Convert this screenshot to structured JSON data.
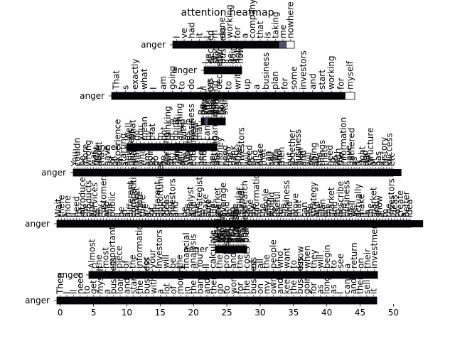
{
  "chart_data": {
    "type": "heatmap",
    "title": "attention heatmap",
    "colormap": "bone",
    "row_label": "anger",
    "panels": [
      {
        "name": "panel-1",
        "tokens": [
          "I",
          "ve",
          "had",
          "it",
          "I",
          "m",
          "done",
          "working",
          "for",
          "a",
          "company",
          "that",
          "is",
          "taking",
          "me",
          "nowhere"
        ],
        "weights": [
          0.02,
          0.02,
          0.03,
          0.02,
          0.02,
          0.02,
          0.03,
          0.02,
          0.02,
          0.02,
          0.02,
          0.03,
          0.02,
          0.03,
          0.35,
          1.0
        ],
        "x_ticks": []
      },
      {
        "name": "panel-2",
        "tokens": [
          "I",
          "ve",
          "decided",
          "to",
          "start",
          "my",
          "own",
          "business",
          "I",
          "ll",
          "be",
          "doing",
          "it",
          "right",
          "now"
        ],
        "weights": [
          0.02,
          0.02,
          0.02,
          0.02,
          0.02,
          0.02,
          0.02,
          0.02,
          0.02,
          0.02,
          0.02,
          0.02,
          0.02,
          0.02,
          0.02
        ],
        "x_ticks": []
      },
      {
        "name": "panel-3",
        "tokens": [
          "That",
          "s",
          "exactly",
          "what",
          "I",
          "am",
          "going",
          "to",
          "do",
          "I",
          "ve",
          "decided",
          "to",
          "write",
          "up",
          "a",
          "business",
          "plan",
          "for",
          "some",
          "investors",
          "and",
          "start",
          "working",
          "for",
          "myself"
        ],
        "weights": [
          0.02,
          0.02,
          0.02,
          0.02,
          0.02,
          0.02,
          0.02,
          0.02,
          0.02,
          0.02,
          0.02,
          0.02,
          0.02,
          0.02,
          0.02,
          0.02,
          0.02,
          0.02,
          0.02,
          0.02,
          0.02,
          0.02,
          0.02,
          0.02,
          0.02,
          1.0
        ],
        "x_ticks": []
      },
      {
        "name": "panel-4",
        "tokens": [
          "Be",
          "careful",
          "What",
          "kind",
          "of",
          "business",
          "are",
          "you",
          "thinking",
          "about",
          "I",
          "m",
          "going",
          "to",
          "start"
        ],
        "weights": [
          0.02,
          0.02,
          0.25,
          0.35,
          0.03,
          0.02,
          0.02,
          0.02,
          0.02,
          0.02,
          0.02,
          0.02,
          0.02,
          0.02,
          0.03
        ],
        "x_ticks": []
      },
      {
        "name": "panel-5",
        "tokens": [
          "Well",
          "what",
          "do",
          "you",
          "mean",
          "by",
          "that",
          "I",
          "m",
          "not",
          "thinking",
          "of",
          "doing",
          "anything",
          "with",
          "a",
          "business",
          "plan",
          "that",
          "I",
          "can",
          "t",
          "handle"
        ],
        "weights": [
          0.02,
          0.02,
          0.02,
          0.02,
          0.02,
          0.02,
          0.02,
          0.02,
          0.02,
          0.02,
          0.02,
          0.02,
          0.02,
          0.02,
          0.02,
          0.02,
          0.02,
          0.02,
          0.02,
          0.02,
          0.02,
          0.02,
          0.02
        ],
        "x_ticks": []
      },
      {
        "name": "panel-6",
        "tokens": [
          "You",
          "couldn",
          "t",
          "be",
          "more",
          "wrong",
          "I",
          "was",
          "right",
          "about",
          "that",
          "I",
          "have",
          "a",
          "lot",
          "of",
          "experience",
          "in",
          "starting",
          "a",
          "new",
          "business",
          "and",
          "that",
          "is",
          "what",
          "I",
          "am",
          "going",
          "to",
          "do",
          "I",
          "ll",
          "be",
          "working",
          "out",
          "of",
          "my",
          "home",
          "with",
          "all",
          "the",
          "supplies",
          "and",
          "equipment",
          "I",
          "ll",
          "need",
          "and",
          "I",
          "ll",
          "be",
          "getting",
          "the",
          "money",
          "I",
          "need",
          "from",
          "the",
          "bank",
          "and",
          "other",
          "investors",
          "I",
          "will",
          "need",
          "to",
          "find",
          "a",
          "place",
          "that",
          "I",
          "can",
          "call",
          "my",
          "own",
          "and",
          "then",
          "I",
          "ll",
          "put",
          "together",
          "a",
          "business",
          "plan",
          "and",
          "I",
          "will",
          "be",
          "doing",
          "all",
          "the",
          "things",
          "that",
          "I",
          "need",
          "to",
          "do",
          "with",
          "the",
          "information",
          "I",
          "have",
          "gathered",
          "as",
          "it",
          "is",
          "right",
          "and",
          "the",
          "structure",
          "of",
          "it",
          "has",
          "a",
          "history",
          "of",
          "success",
          "etc"
        ],
        "weights": [
          0.02,
          0.02,
          0.02,
          0.02,
          0.02,
          0.02,
          0.02,
          0.02,
          0.02,
          0.02,
          0.02,
          0.02,
          0.02,
          0.02,
          0.02,
          0.02,
          0.02,
          0.02,
          0.02,
          0.02,
          0.02,
          0.02,
          0.02,
          0.02,
          0.02,
          0.02,
          0.02,
          0.02,
          0.02,
          0.02,
          0.02,
          0.02,
          0.02,
          0.02,
          0.02,
          0.02,
          0.02,
          0.02,
          0.02,
          0.02,
          0.02,
          0.02,
          0.02,
          0.02,
          0.02,
          0.02,
          0.02,
          0.02,
          0.02,
          0.02,
          0.02,
          0.02,
          0.02,
          0.02,
          0.02,
          0.02,
          0.02,
          0.02,
          0.02,
          0.02,
          0.02,
          0.02,
          0.02,
          0.02,
          0.02,
          0.02,
          0.02,
          0.02,
          0.02,
          0.02,
          0.02,
          0.02,
          0.02,
          0.02,
          0.02,
          0.02,
          0.02,
          0.02,
          0.02,
          0.02,
          0.02,
          0.02,
          0.02,
          0.02,
          0.02,
          0.02,
          0.02,
          0.02,
          0.02,
          0.02,
          0.02,
          0.02,
          0.02,
          0.02,
          0.02,
          0.02,
          0.02,
          0.02,
          0.02,
          0.02,
          0.02,
          0.02,
          0.02,
          0.02,
          0.02,
          0.02,
          0.02,
          0.02,
          0.02,
          0.02,
          0.02,
          0.02,
          0.02,
          0.02,
          0.02,
          0.02,
          0.02,
          0.02,
          0.02,
          0.02,
          0.02,
          0.02
        ],
        "x_ticks": []
      },
      {
        "name": "panel-7",
        "tokens": [
          "Wait",
          "there",
          "s",
          "more",
          "I",
          "ll",
          "need",
          "to",
          "introduce",
          "the",
          "products",
          "and",
          "services",
          "to",
          "my",
          "customers",
          "and",
          "the",
          "public",
          "I",
          "ll",
          "be",
          "in",
          "a",
          "different",
          "competitive",
          "market",
          "where",
          "there",
          "are",
          "a",
          "lot",
          "of",
          "different",
          "opportunities",
          "and",
          "ideas",
          "and",
          "investors",
          "and",
          "I",
          "ll",
          "be",
          "the",
          "analyst",
          "and",
          "the",
          "strategist",
          "to",
          "make",
          "sure",
          "that",
          "the",
          "market",
          "is",
          "average",
          "and",
          "to",
          "do",
          "the",
          "regular",
          "market",
          "research",
          "to",
          "give",
          "the",
          "information",
          "to",
          "the",
          "people",
          "who",
          "would",
          "be",
          "useful",
          "for",
          "the",
          "business",
          "and",
          "to",
          "prove",
          "that",
          "I",
          "can",
          "do",
          "the",
          "strategy",
          "and",
          "the",
          "plan",
          "on",
          "the",
          "market",
          "and",
          "to",
          "describe",
          "the",
          "business",
          "as",
          "well",
          "as",
          "actually",
          "make",
          "it",
          "in",
          "the",
          "market",
          "and",
          "show",
          "it",
          "to",
          "the",
          "investors",
          "ideas",
          "to",
          "create",
          "a",
          "better",
          "idea"
        ],
        "weights": [
          0.02,
          0.02,
          0.02,
          0.02,
          0.02,
          0.02,
          0.02,
          0.02,
          0.02,
          0.02,
          0.02,
          0.02,
          0.02,
          0.02,
          0.02,
          0.02,
          0.02,
          0.02,
          0.02,
          0.02,
          0.02,
          0.02,
          0.02,
          0.02,
          0.02,
          0.02,
          0.02,
          0.02,
          0.02,
          0.02,
          0.02,
          0.02,
          0.02,
          0.02,
          0.02,
          0.02,
          0.02,
          0.02,
          0.02,
          0.02,
          0.02,
          0.02,
          0.02,
          0.02,
          0.02,
          0.02,
          0.02,
          0.02,
          0.02,
          0.02,
          0.02,
          0.02,
          0.02,
          0.02,
          0.02,
          0.02,
          0.02,
          0.02,
          0.02,
          0.02,
          0.02,
          0.02,
          0.02,
          0.02,
          0.02,
          0.02,
          0.02,
          0.02,
          0.02,
          0.02,
          0.02,
          0.02,
          0.02,
          0.02,
          0.02,
          0.02,
          0.02,
          0.02,
          0.02,
          0.02,
          0.02,
          0.02,
          0.02,
          0.02,
          0.02,
          0.02,
          0.02,
          0.02,
          0.02,
          0.02,
          0.02,
          0.02,
          0.02,
          0.02,
          0.02,
          0.02,
          0.02,
          0.02,
          0.02,
          0.02,
          0.02,
          0.02,
          0.02,
          0.02,
          0.02,
          0.02,
          0.02,
          0.02,
          0.02,
          0.02,
          0.02,
          0.02,
          0.02,
          0.02,
          0.02,
          0.02,
          0.02,
          0.02,
          0.02,
          0.02,
          0.02,
          0.02
        ],
        "x_ticks": []
      },
      {
        "name": "panel-8",
        "tokens": [
          "What",
          "we",
          "calculate",
          "as",
          "the",
          "capital",
          "is",
          "not",
          "the",
          "same",
          "as",
          "the",
          "income",
          "from",
          "a",
          "financial",
          "analysis",
          "and",
          "the",
          "costs",
          "of",
          "a",
          "new",
          "business",
          "plan"
        ],
        "weights": [
          0.02,
          0.02,
          0.02,
          0.02,
          0.02,
          0.02,
          0.02,
          0.02,
          0.02,
          0.02,
          0.02,
          0.02,
          0.02,
          0.02,
          0.02,
          0.02,
          0.02,
          0.02,
          0.02,
          0.02,
          0.02,
          0.02,
          0.02,
          0.02,
          0.02
        ],
        "x_ticks": []
      },
      {
        "name": "panel-9",
        "tokens": [
          "Almost",
          "the",
          "most",
          "important",
          "piece",
          "of",
          "the",
          "information",
          "for",
          "your",
          "investors",
          "will",
          "be",
          "the",
          "financial",
          "analysis",
          "You",
          "ll",
          "calculate",
          "the",
          "profits",
          "and",
          "the",
          "costs",
          "of",
          "all",
          "the",
          "people",
          "who",
          "want",
          "to",
          "know",
          "when",
          "they",
          "will",
          "begin",
          "to",
          "see",
          "a",
          "return",
          "on",
          "their",
          "investment"
        ],
        "weights": [
          0.02,
          0.02,
          0.02,
          0.02,
          0.02,
          0.02,
          0.02,
          0.02,
          0.02,
          0.02,
          0.02,
          0.02,
          0.02,
          0.02,
          0.02,
          0.02,
          0.02,
          0.02,
          0.02,
          0.02,
          0.02,
          0.02,
          0.02,
          0.02,
          0.02,
          0.02,
          0.02,
          0.02,
          0.02,
          0.02,
          0.02,
          0.02,
          0.02,
          0.02,
          0.02,
          0.02,
          0.02,
          0.02,
          0.02,
          0.02,
          0.02,
          0.02,
          0.02
        ],
        "x_ticks": []
      },
      {
        "name": "panel-10",
        "tokens": [
          "Then",
          "I",
          "ll",
          "need",
          "to",
          "get",
          "myself",
          "a",
          "business",
          "loan",
          "and",
          "start",
          "the",
          "business",
          "with",
          "a",
          "lot",
          "of",
          "money",
          "in",
          "the",
          "bank",
          "and",
          "then",
          "go",
          "to",
          "work",
          "for",
          "the",
          "business",
          "on",
          "my",
          "own",
          "and",
          "keep",
          "the",
          "business",
          "going",
          "for",
          "as",
          "long",
          "as",
          "I",
          "can",
          "and",
          "then",
          "sell",
          "it"
        ],
        "weights": [
          0.02,
          0.02,
          0.02,
          0.02,
          0.02,
          0.02,
          0.02,
          0.02,
          0.02,
          0.02,
          0.02,
          0.02,
          0.02,
          0.02,
          0.02,
          0.02,
          0.02,
          0.02,
          0.02,
          0.02,
          0.02,
          0.02,
          0.02,
          0.02,
          0.02,
          0.02,
          0.02,
          0.02,
          0.02,
          0.02,
          0.02,
          0.02,
          0.02,
          0.02,
          0.02,
          0.02,
          0.02,
          0.02,
          0.02,
          0.02,
          0.02,
          0.02,
          0.02,
          0.02,
          0.02,
          0.02,
          0.02,
          0.02
        ],
        "x_ticks": [
          "0",
          "5",
          "10",
          "15",
          "20",
          "25",
          "30",
          "35",
          "40",
          "45",
          "50"
        ]
      }
    ]
  },
  "colors": {
    "background": "#ffffff",
    "text": "#000000",
    "low": "#000000",
    "high": "#ffffff"
  }
}
